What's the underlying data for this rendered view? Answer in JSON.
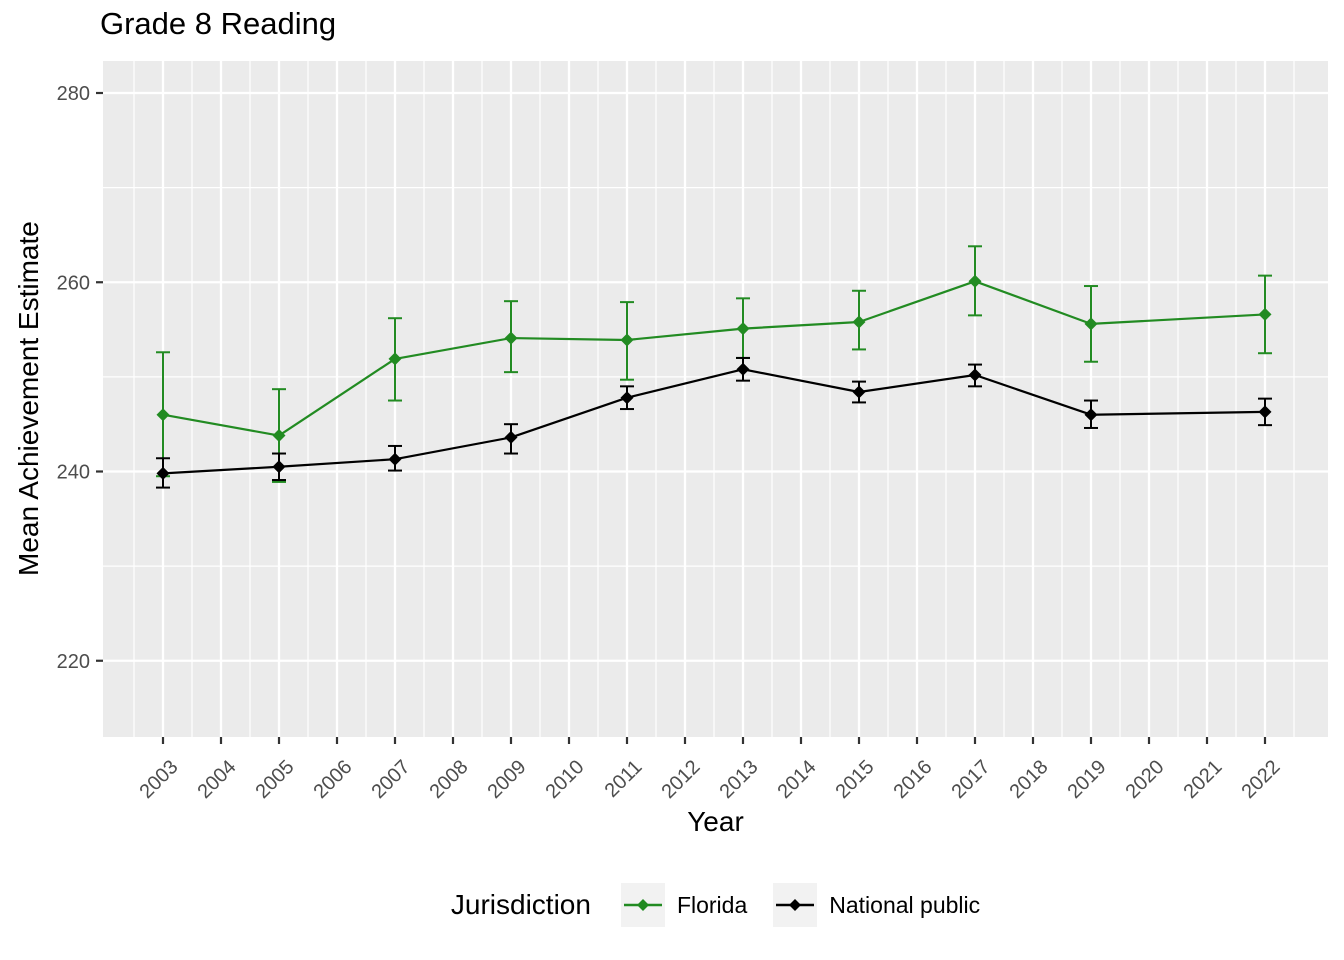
{
  "title": "Grade 8 Reading",
  "axes": {
    "x_label": "Year",
    "y_label": "Mean Achievement Estimate"
  },
  "legend": {
    "title": "Jurisdiction",
    "items": [
      {
        "label": "Florida",
        "color": "#228B22"
      },
      {
        "label": "National public",
        "color": "#000000"
      }
    ]
  },
  "colors": {
    "panel_bg": "#EBEBEB",
    "gridline": "#FFFFFF",
    "tick_mark": "#333333",
    "tick_label": "#4D4D4D",
    "legend_key_bg": "#F2F2F2"
  },
  "chart_data": {
    "type": "line",
    "title": "Grade 8 Reading",
    "xlabel": "Year",
    "ylabel": "Mean Achievement Estimate",
    "x_ticks": [
      2003,
      2004,
      2005,
      2006,
      2007,
      2008,
      2009,
      2010,
      2011,
      2012,
      2013,
      2014,
      2015,
      2016,
      2017,
      2018,
      2019,
      2020,
      2021,
      2022
    ],
    "y_ticks": [
      220,
      240,
      260,
      280
    ],
    "y_minor_ticks": [
      230,
      250,
      270
    ],
    "xlim": [
      2002.05,
      2022.95
    ],
    "ylim": [
      211.8,
      283.5
    ],
    "grid": "white major and minor gridlines on gray panel",
    "legend_position": "bottom",
    "marker": "diamond",
    "error_bars": "confidence interval whiskers with caps",
    "x": [
      2003,
      2005,
      2007,
      2009,
      2011,
      2013,
      2015,
      2017,
      2019,
      2022
    ],
    "series": [
      {
        "name": "Florida",
        "color": "#228B22",
        "values": [
          246.0,
          243.8,
          251.9,
          254.1,
          253.9,
          255.1,
          255.8,
          260.1,
          255.6,
          256.6
        ],
        "ci_low": [
          239.5,
          238.9,
          247.5,
          250.5,
          249.7,
          252.0,
          252.9,
          256.5,
          251.6,
          252.5
        ],
        "ci_high": [
          252.6,
          248.7,
          256.2,
          258.0,
          257.9,
          258.3,
          259.1,
          263.8,
          259.6,
          260.7
        ]
      },
      {
        "name": "National public",
        "color": "#000000",
        "values": [
          239.8,
          240.5,
          241.3,
          243.6,
          247.8,
          250.8,
          248.4,
          250.2,
          246.0,
          246.3
        ],
        "ci_low": [
          238.3,
          239.1,
          240.1,
          241.9,
          246.6,
          249.6,
          247.3,
          249.0,
          244.6,
          244.9
        ],
        "ci_high": [
          241.4,
          241.9,
          242.7,
          245.0,
          249.0,
          252.0,
          249.5,
          251.3,
          247.5,
          247.7
        ]
      }
    ]
  }
}
